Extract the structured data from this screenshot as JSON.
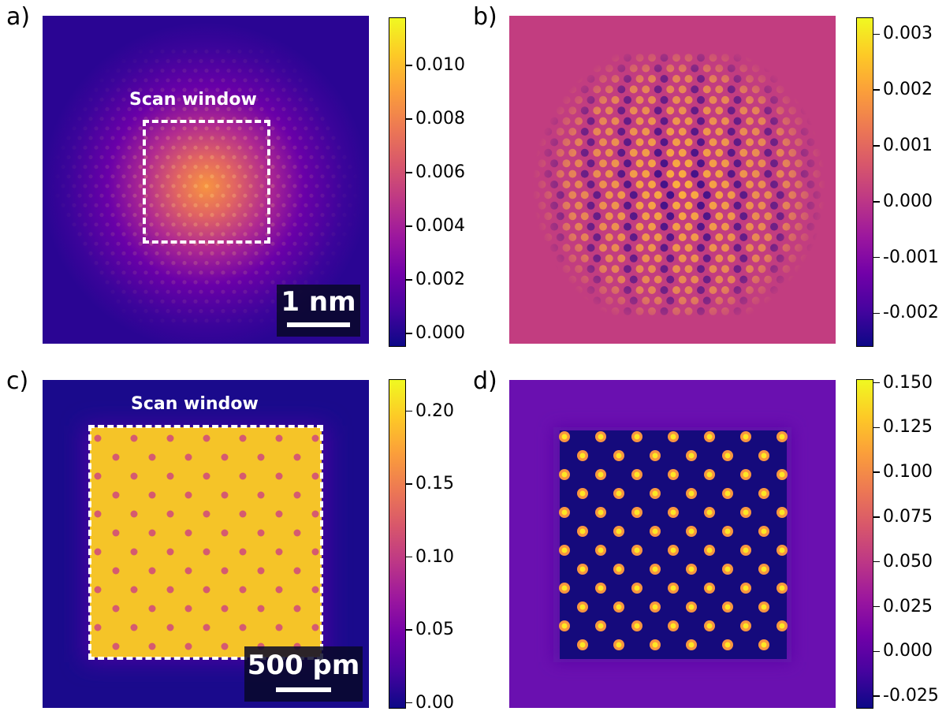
{
  "colormap": [
    "#0d0887",
    "#46039f",
    "#7201a8",
    "#9c179e",
    "#bd3786",
    "#d8576b",
    "#ed7953",
    "#fb9f3a",
    "#fdca26",
    "#f0f921"
  ],
  "chart_data": [
    {
      "type": "heatmap",
      "panel_label": "a)",
      "annotation": "Scan window",
      "scale_bar": "1 nm",
      "colorbar": {
        "min": -0.0005,
        "max": 0.0118,
        "ticks": [
          0.0,
          0.002,
          0.004,
          0.006,
          0.008,
          0.01
        ],
        "tick_labels": [
          "0.000",
          "0.002",
          "0.004",
          "0.006",
          "0.008",
          "0.010"
        ]
      },
      "pattern": "gaussian blob with weak lattice, background ~0.0008, peak ~0.0095"
    },
    {
      "type": "heatmap",
      "panel_label": "b)",
      "colorbar": {
        "min": -0.0026,
        "max": 0.0033,
        "ticks": [
          -0.002,
          -0.001,
          0.0,
          0.001,
          0.002,
          0.003
        ],
        "tick_labels": [
          "-0.002",
          "-0.001",
          "0.000",
          "0.001",
          "0.002",
          "0.003"
        ]
      },
      "pattern": "hexagonal lattice of bright spots on ~0.000 background, radially decaying"
    },
    {
      "type": "heatmap",
      "panel_label": "c)",
      "annotation": "Scan window",
      "scale_bar": "500 pm",
      "colorbar": {
        "min": -0.004,
        "max": 0.222,
        "ticks": [
          0.0,
          0.05,
          0.1,
          0.15,
          0.2
        ],
        "tick_labels": [
          "0.00",
          "0.05",
          "0.10",
          "0.15",
          "0.20"
        ]
      },
      "pattern": "uniform square ~0.20 inside scan window with darker lattice dots ~0.12, background ~0.0"
    },
    {
      "type": "heatmap",
      "panel_label": "d)",
      "colorbar": {
        "min": -0.032,
        "max": 0.152,
        "ticks": [
          -0.025,
          0.0,
          0.025,
          0.05,
          0.075,
          0.1,
          0.125,
          0.15
        ],
        "tick_labels": [
          "-0.025",
          "0.000",
          "0.025",
          "0.050",
          "0.075",
          "0.100",
          "0.125",
          "0.150"
        ]
      },
      "pattern": "bright spots ~0.15 on dark square ~-0.02, surrounding background ~0.0"
    }
  ]
}
